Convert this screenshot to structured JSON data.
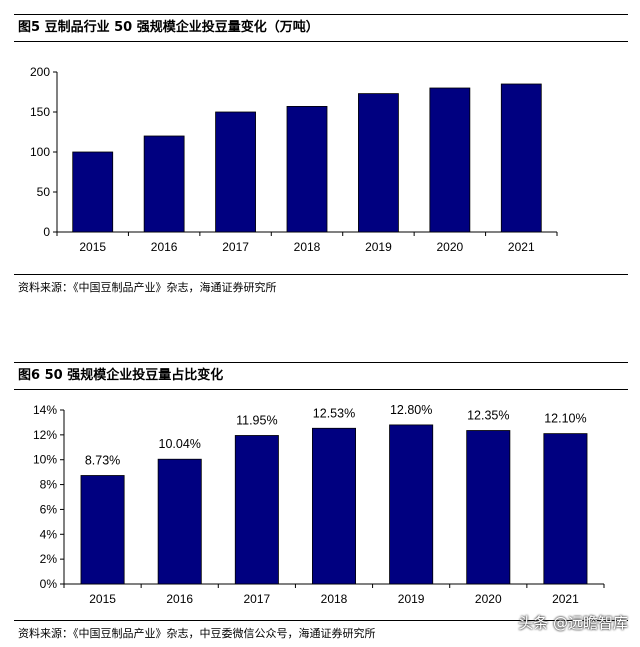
{
  "figure1": {
    "title": "图5 豆制品行业 50 强规模企业投豆量变化（万吨）",
    "source": "资料来源：《中国豆制品产业》杂志，海通证券研究所"
  },
  "figure2": {
    "title": "图6 50 强规模企业投豆量占比变化",
    "source": "资料来源：《中国豆制品产业》杂志，中豆委微信公众号，海通证券研究所"
  },
  "watermark": "头条 @远瞻智库",
  "colors": {
    "bar": "#000080",
    "axis": "#000000"
  },
  "chart_data": [
    {
      "type": "bar",
      "title": "图5 豆制品行业 50 强规模企业投豆量变化（万吨）",
      "categories": [
        "2015",
        "2016",
        "2017",
        "2018",
        "2019",
        "2020",
        "2021"
      ],
      "values": [
        100,
        120,
        150,
        157,
        173,
        180,
        185
      ],
      "ylim": [
        0,
        200
      ],
      "yticks": [
        0,
        50,
        100,
        150,
        200
      ],
      "ytick_labels": [
        "0",
        "50",
        "100",
        "150",
        "200"
      ],
      "data_labels": [],
      "grid": false
    },
    {
      "type": "bar",
      "title": "图6 50 强规模企业投豆量占比变化",
      "categories": [
        "2015",
        "2016",
        "2017",
        "2018",
        "2019",
        "2020",
        "2021"
      ],
      "values": [
        8.73,
        10.04,
        11.95,
        12.53,
        12.8,
        12.35,
        12.1
      ],
      "ylim": [
        0,
        14
      ],
      "yticks": [
        0,
        2,
        4,
        6,
        8,
        10,
        12,
        14
      ],
      "ytick_labels": [
        "0%",
        "2%",
        "4%",
        "6%",
        "8%",
        "10%",
        "12%",
        "14%"
      ],
      "data_labels": [
        "8.73%",
        "10.04%",
        "11.95%",
        "12.53%",
        "12.80%",
        "12.35%",
        "12.10%"
      ],
      "grid": false
    }
  ]
}
